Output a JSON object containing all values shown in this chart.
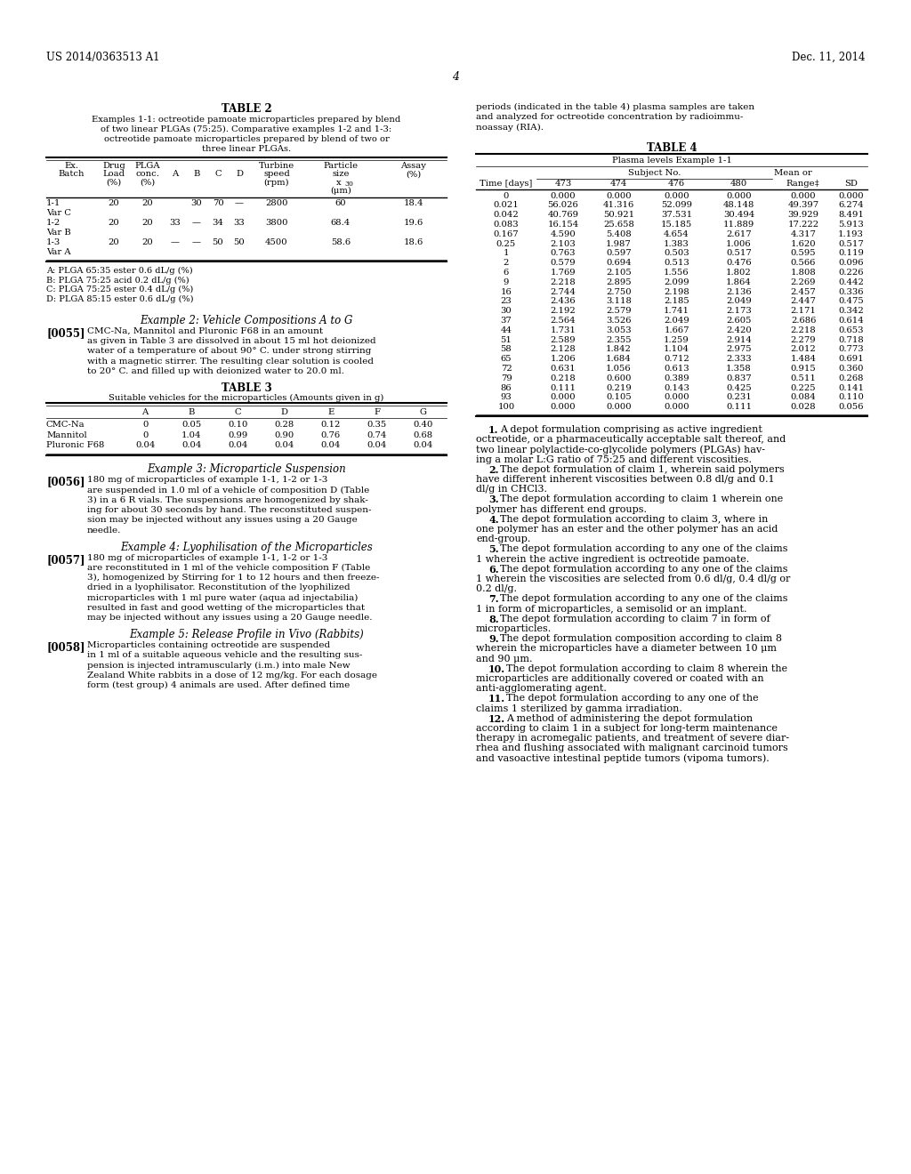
{
  "page_header_left": "US 2014/0363513 A1",
  "page_header_right": "Dec. 11, 2014",
  "page_number": "4",
  "table2_title": "TABLE 2",
  "table2_subtitle_lines": [
    "Examples 1-1: octreotide pamoate microparticles prepared by blend",
    "of two linear PLGAs (75:25). Comparative examples 1-2 and 1-3:",
    "octreotide pamoate microparticles prepared by blend of two or",
    "three linear PLGAs."
  ],
  "table2_footnotes": [
    "A: PLGA 65:35 ester 0.6 dL/g (%)",
    "B: PLGA 75:25 acid 0.2 dL/g (%)",
    "C: PLGA 75:25 ester 0.4 dL/g (%)",
    "D: PLGA 85:15 ester 0.6 dL/g (%)"
  ],
  "table2_rows": [
    [
      "1-1",
      "Var C",
      "20",
      "20",
      "",
      "30",
      "70",
      "—",
      "2800",
      "60",
      "18.4"
    ],
    [
      "1-2",
      "Var B",
      "20",
      "20",
      "33",
      "—",
      "34",
      "33",
      "3800",
      "68.4",
      "19.6"
    ],
    [
      "1-3",
      "Var A",
      "20",
      "20",
      "—",
      "—",
      "50",
      "50",
      "4500",
      "58.6",
      "18.6"
    ]
  ],
  "example2_title": "Example 2: Vehicle Compositions A to G",
  "example2_para_num": "[0055]",
  "example2_lines": [
    "CMC-Na, Mannitol and Pluronic F68 in an amount",
    "as given in Table 3 are dissolved in about 15 ml hot deionized",
    "water of a temperature of about 90° C. under strong stirring",
    "with a magnetic stirrer. The resulting clear solution is cooled",
    "to 20° C. and filled up with deionized water to 20.0 ml."
  ],
  "table3_title": "TABLE 3",
  "table3_subtitle": "Suitable vehicles for the microparticles (Amounts given in g)",
  "table3_col_headers": [
    "A",
    "B",
    "C",
    "D",
    "E",
    "F",
    "G"
  ],
  "table3_rows": [
    [
      "CMC-Na",
      "0",
      "0.05",
      "0.10",
      "0.28",
      "0.12",
      "0.35",
      "0.40"
    ],
    [
      "Mannitol",
      "0",
      "1.04",
      "0.99",
      "0.90",
      "0.76",
      "0.74",
      "0.68"
    ],
    [
      "Pluronic F68",
      "0.04",
      "0.04",
      "0.04",
      "0.04",
      "0.04",
      "0.04",
      "0.04"
    ]
  ],
  "example3_title": "Example 3: Microparticle Suspension",
  "example3_para_num": "[0056]",
  "example3_lines": [
    "180 mg of microparticles of example 1-1, 1-2 or 1-3",
    "are suspended in 1.0 ml of a vehicle of composition D (Table",
    "3) in a 6 R vials. The suspensions are homogenized by shak-",
    "ing for about 30 seconds by hand. The reconstituted suspen-",
    "sion may be injected without any issues using a 20 Gauge",
    "needle."
  ],
  "example4_title": "Example 4: Lyophilisation of the Microparticles",
  "example4_para_num": "[0057]",
  "example4_lines": [
    "180 mg of microparticles of example 1-1, 1-2 or 1-3",
    "are reconstituted in 1 ml of the vehicle composition F (Table",
    "3), homogenized by Stirring for 1 to 12 hours and then freeze-",
    "dried in a lyophilisator. Reconstitution of the lyophilized",
    "microparticles with 1 ml pure water (aqua ad injectabilia)",
    "resulted in fast and good wetting of the microparticles that",
    "may be injected without any issues using a 20 Gauge needle."
  ],
  "example5_title": "Example 5: Release Profile in Vivo (Rabbits)",
  "example5_para_num": "[0058]",
  "example5_lines": [
    "Microparticles containing octreotide are suspended",
    "in 1 ml of a suitable aqueous vehicle and the resulting sus-",
    "pension is injected intramuscularly (i.m.) into male New",
    "Zealand White rabbits in a dose of 12 mg/kg. For each dosage",
    "form (test group) 4 animals are used. After defined time"
  ],
  "right_col_intro_lines": [
    "periods (indicated in the table 4) plasma samples are taken",
    "and analyzed for octreotide concentration by radioimmu-",
    "noassay (RIA)."
  ],
  "table4_title": "TABLE 4",
  "table4_subtitle": "Plasma levels Example 1-1",
  "table4_data": [
    [
      "0",
      "0.000",
      "0.000",
      "0.000",
      "0.000",
      "0.000",
      "0.000"
    ],
    [
      "0.021",
      "56.026",
      "41.316",
      "52.099",
      "48.148",
      "49.397",
      "6.274"
    ],
    [
      "0.042",
      "40.769",
      "50.921",
      "37.531",
      "30.494",
      "39.929",
      "8.491"
    ],
    [
      "0.083",
      "16.154",
      "25.658",
      "15.185",
      "11.889",
      "17.222",
      "5.913"
    ],
    [
      "0.167",
      "4.590",
      "5.408",
      "4.654",
      "2.617",
      "4.317",
      "1.193"
    ],
    [
      "0.25",
      "2.103",
      "1.987",
      "1.383",
      "1.006",
      "1.620",
      "0.517"
    ],
    [
      "1",
      "0.763",
      "0.597",
      "0.503",
      "0.517",
      "0.595",
      "0.119"
    ],
    [
      "2",
      "0.579",
      "0.694",
      "0.513",
      "0.476",
      "0.566",
      "0.096"
    ],
    [
      "6",
      "1.769",
      "2.105",
      "1.556",
      "1.802",
      "1.808",
      "0.226"
    ],
    [
      "9",
      "2.218",
      "2.895",
      "2.099",
      "1.864",
      "2.269",
      "0.442"
    ],
    [
      "16",
      "2.744",
      "2.750",
      "2.198",
      "2.136",
      "2.457",
      "0.336"
    ],
    [
      "23",
      "2.436",
      "3.118",
      "2.185",
      "2.049",
      "2.447",
      "0.475"
    ],
    [
      "30",
      "2.192",
      "2.579",
      "1.741",
      "2.173",
      "2.171",
      "0.342"
    ],
    [
      "37",
      "2.564",
      "3.526",
      "2.049",
      "2.605",
      "2.686",
      "0.614"
    ],
    [
      "44",
      "1.731",
      "3.053",
      "1.667",
      "2.420",
      "2.218",
      "0.653"
    ],
    [
      "51",
      "2.589",
      "2.355",
      "1.259",
      "2.914",
      "2.279",
      "0.718"
    ],
    [
      "58",
      "2.128",
      "1.842",
      "1.104",
      "2.975",
      "2.012",
      "0.773"
    ],
    [
      "65",
      "1.206",
      "1.684",
      "0.712",
      "2.333",
      "1.484",
      "0.691"
    ],
    [
      "72",
      "0.631",
      "1.056",
      "0.613",
      "1.358",
      "0.915",
      "0.360"
    ],
    [
      "79",
      "0.218",
      "0.600",
      "0.389",
      "0.837",
      "0.511",
      "0.268"
    ],
    [
      "86",
      "0.111",
      "0.219",
      "0.143",
      "0.425",
      "0.225",
      "0.141"
    ],
    [
      "93",
      "0.000",
      "0.105",
      "0.000",
      "0.231",
      "0.084",
      "0.110"
    ],
    [
      "100",
      "0.000",
      "0.000",
      "0.000",
      "0.111",
      "0.028",
      "0.056"
    ]
  ],
  "claims": [
    {
      "num": "1",
      "first_bold": true,
      "lines": [
        "    1.  A depot formulation comprising as active ingredient",
        "octreotide, or a pharmaceutically acceptable salt thereof, and",
        "two linear polylactide-co-glycolide polymers (PLGAs) hav-",
        "ing a molar L:G ratio of 75:25 and different viscosities."
      ]
    },
    {
      "num": "2",
      "first_bold": false,
      "lines": [
        "    2.  The depot formulation of claim 1, wherein said polymers",
        "have different inherent viscosities between 0.8 dl/g and 0.1",
        "dl/g in CHCl3."
      ]
    },
    {
      "num": "3",
      "first_bold": false,
      "lines": [
        "    3.  The depot formulation according to claim 1 wherein one",
        "polymer has different end groups."
      ]
    },
    {
      "num": "4",
      "first_bold": false,
      "lines": [
        "    4.  The depot formulation according to claim 3, where in",
        "one polymer has an ester and the other polymer has an acid",
        "end-group."
      ]
    },
    {
      "num": "5",
      "first_bold": false,
      "lines": [
        "    5.  The depot formulation according to any one of the claims",
        "1 wherein the active ingredient is octreotide pamoate."
      ]
    },
    {
      "num": "6",
      "first_bold": false,
      "lines": [
        "    6.  The depot formulation according to any one of the claims",
        "1 wherein the viscosities are selected from 0.6 dl/g, 0.4 dl/g or",
        "0.2 dl/g."
      ]
    },
    {
      "num": "7",
      "first_bold": false,
      "lines": [
        "    7.  The depot formulation according to any one of the claims",
        "1 in form of microparticles, a semisolid or an implant."
      ]
    },
    {
      "num": "8",
      "first_bold": false,
      "lines": [
        "    8.  The depot formulation according to claim 7 in form of",
        "microparticles."
      ]
    },
    {
      "num": "9",
      "first_bold": false,
      "lines": [
        "    9.  The depot formulation composition according to claim 8",
        "wherein the microparticles have a diameter between 10 μm",
        "and 90 μm."
      ]
    },
    {
      "num": "10",
      "first_bold": false,
      "lines": [
        "    10.  The depot formulation according to claim 8 wherein the",
        "microparticles are additionally covered or coated with an",
        "anti-agglomerating agent."
      ]
    },
    {
      "num": "11",
      "first_bold": false,
      "lines": [
        "    11.  The depot formulation according to any one of the",
        "claims 1 sterilized by gamma irradiation."
      ]
    },
    {
      "num": "12",
      "first_bold": false,
      "lines": [
        "    12.  A method of administering the depot formulation",
        "according to claim 1 in a subject for long-term maintenance",
        "therapy in acromegalic patients, and treatment of severe diar-",
        "rhea and flushing associated with malignant carcinoid tumors",
        "and vasoactive intestinal peptide tumors (vipoma tumors)."
      ]
    }
  ]
}
